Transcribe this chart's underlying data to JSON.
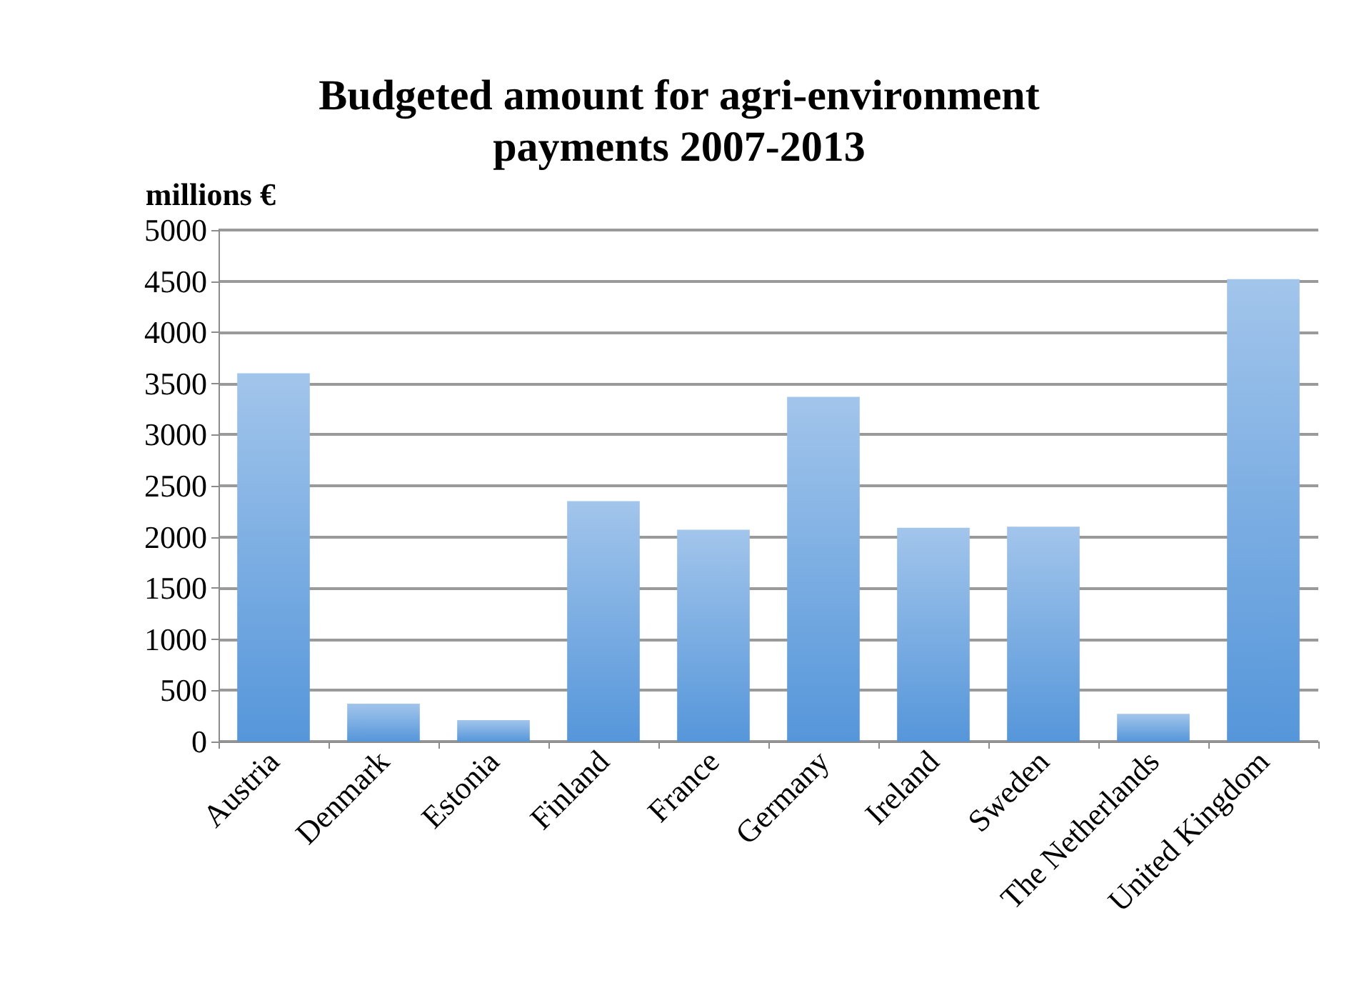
{
  "chart_data": {
    "type": "bar",
    "title": "Budgeted amount for agri-environment\npayments 2007-2013",
    "ylabel": "millions €",
    "categories": [
      "Austria",
      "Denmark",
      "Estonia",
      "Finland",
      "France",
      "Germany",
      "Ireland",
      "Sweden",
      "The Netherlands",
      "United Kingdom"
    ],
    "values": [
      3600,
      370,
      210,
      2350,
      2070,
      3370,
      2090,
      2100,
      270,
      4520
    ],
    "color": "#5596da",
    "ylim": [
      0,
      5000
    ],
    "yticks": [
      0,
      500,
      1000,
      1500,
      2000,
      2500,
      3000,
      3500,
      4000,
      4500,
      5000
    ],
    "grid": "y"
  }
}
